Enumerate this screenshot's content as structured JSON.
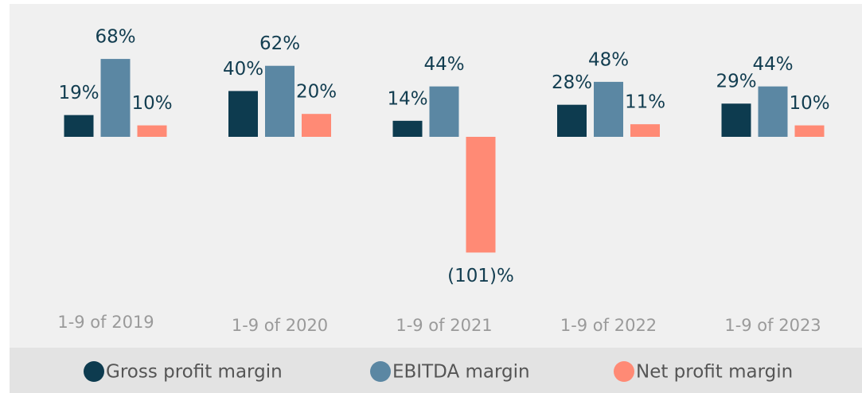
{
  "chart_data": {
    "type": "bar",
    "categories": [
      "1-9 of 2019",
      "1-9 of 2020",
      "1-9 of 2021",
      "1-9 of 2022",
      "1-9 of 2023"
    ],
    "series": [
      {
        "name": "Gross profit margin",
        "color": "#0d3b4f",
        "values": [
          19,
          40,
          14,
          28,
          29
        ],
        "value_labels": [
          "19%",
          "40%",
          "14%",
          "28%",
          "29%"
        ]
      },
      {
        "name": "EBITDA margin",
        "color": "#5b87a3",
        "values": [
          68,
          62,
          44,
          48,
          44
        ],
        "value_labels": [
          "68%",
          "62%",
          "44%",
          "48%",
          "44%"
        ]
      },
      {
        "name": "Net profit margin",
        "color": "#ff8a75",
        "values": [
          10,
          20,
          -101,
          11,
          10
        ],
        "value_labels": [
          "10%",
          "20%",
          "(101)%",
          "11%",
          "10%"
        ]
      }
    ]
  }
}
